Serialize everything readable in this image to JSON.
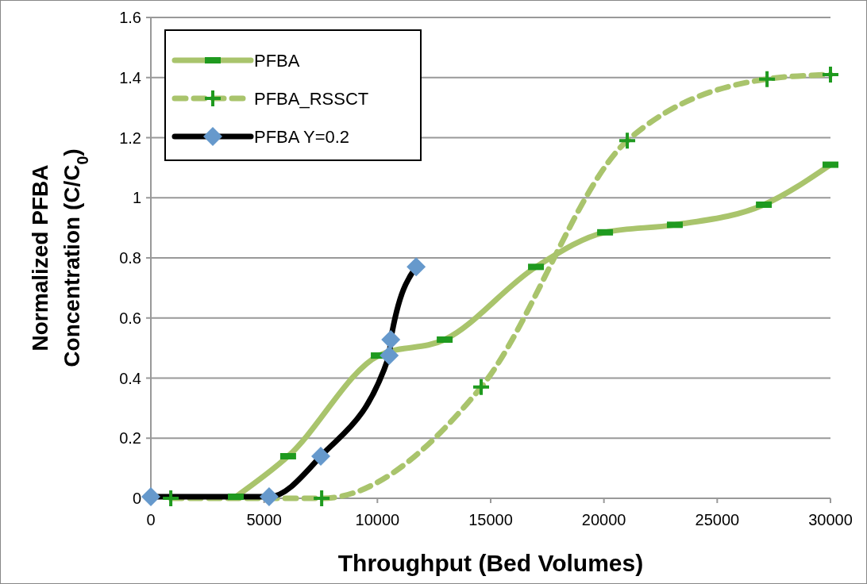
{
  "chart_data": {
    "type": "line",
    "xlabel": "Throughput (Bed Volumes)",
    "ylabel": "Normalized PFBA Concentration (C/C$_{0}$)",
    "xlim": [
      0,
      30000
    ],
    "xticks": [
      0,
      5000,
      10000,
      15000,
      20000,
      25000,
      30000
    ],
    "ylim": [
      0,
      1.6
    ],
    "yticks": [
      0,
      {
        "value": 0.2,
        "label": "0.2"
      },
      {
        "value": 0.4,
        "label": "0.4"
      },
      {
        "value": 0.6,
        "label": "0.6"
      },
      {
        "value": 0.8,
        "label": "0.8"
      },
      1,
      {
        "value": 1.2,
        "label": "1.2"
      },
      {
        "value": 1.4,
        "label": "1.4"
      },
      {
        "value": 1.6,
        "label": "1.6"
      }
    ],
    "grid": "y",
    "legend": "top left",
    "series": [
      {
        "name": "PFBA",
        "color": "#a9c46c",
        "marker": "square",
        "line_style": "solid",
        "x": [
          3750,
          6060,
          10060,
          12970,
          17000,
          20050,
          23130,
          27060,
          30000
        ],
        "values": [
          0.005,
          0.14,
          0.475,
          0.528,
          0.77,
          0.885,
          0.91,
          0.977,
          1.11
        ]
      },
      {
        "name": "PFBA_RSSCT",
        "color": "#a9c46c",
        "marker": "cross",
        "line_style": "dashed",
        "x": [
          880,
          7540,
          14580,
          21030,
          27200,
          30000
        ],
        "values": [
          0,
          0,
          0.37,
          1.19,
          1.395,
          1.41
        ]
      },
      {
        "name": "PFBA Y=0.2",
        "color": "#000000",
        "marker": "diamond",
        "line_style": "solid",
        "x": [
          0,
          5220,
          7500,
          10520,
          10590,
          11710
        ],
        "values": [
          0.005,
          0.005,
          0.14,
          0.475,
          0.528,
          0.77
        ]
      }
    ]
  }
}
